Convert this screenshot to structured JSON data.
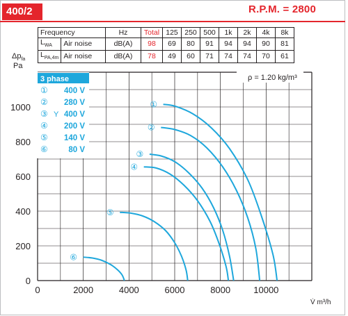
{
  "header": {
    "model": "400/2",
    "rpm_label": "R.P.M. = 2800"
  },
  "noise_table": {
    "headers": [
      "Frequency",
      "Hz",
      "Total",
      "125",
      "250",
      "500",
      "1k",
      "2k",
      "4k",
      "8k"
    ],
    "rows": [
      {
        "symbol": "L",
        "sub": "WA",
        "name": "Air noise",
        "unit": "dB(A)",
        "total": "98",
        "values": [
          "69",
          "80",
          "91",
          "94",
          "94",
          "90",
          "81"
        ]
      },
      {
        "symbol": "L",
        "sub": "PA,4m",
        "name": "Air noise",
        "unit": "dB(A)",
        "total": "78",
        "values": [
          "49",
          "60",
          "71",
          "74",
          "74",
          "70",
          "61"
        ]
      }
    ]
  },
  "legend": {
    "title": "3 phase",
    "items": [
      {
        "marker": "①",
        "y_mark": "",
        "voltage": "400 V"
      },
      {
        "marker": "②",
        "y_mark": "",
        "voltage": "280 V"
      },
      {
        "marker": "③",
        "y_mark": "Y",
        "voltage": "400 V"
      },
      {
        "marker": "④",
        "y_mark": "",
        "voltage": "200 V"
      },
      {
        "marker": "⑤",
        "y_mark": "",
        "voltage": "140 V"
      },
      {
        "marker": "⑥",
        "y_mark": "",
        "voltage": "80 V"
      }
    ]
  },
  "colors": {
    "accent_red": "#e4252c",
    "curve": "#1ea7dc",
    "legend_bg": "#1ea7dc",
    "grid": "#231f20"
  },
  "chart_data": {
    "type": "line",
    "title": "",
    "ylabel_line1": "Δp",
    "ylabel_sub": "fa",
    "ylabel_line2": "Pa",
    "xlabel": "V̇ m³/h",
    "density_note": "ρ = 1.20 kg/m³",
    "xlim": [
      0,
      12000
    ],
    "ylim": [
      0,
      1200
    ],
    "x_ticks": [
      0,
      2000,
      4000,
      6000,
      8000,
      10000
    ],
    "y_ticks": [
      0,
      200,
      400,
      600,
      800,
      1000
    ],
    "series": [
      {
        "marker": "①",
        "points": [
          [
            5500,
            1015
          ],
          [
            6000,
            1005
          ],
          [
            6800,
            960
          ],
          [
            7600,
            880
          ],
          [
            8400,
            760
          ],
          [
            9200,
            580
          ],
          [
            9800,
            370
          ],
          [
            10300,
            150
          ],
          [
            10480,
            0
          ]
        ]
      },
      {
        "marker": "②",
        "points": [
          [
            5400,
            882
          ],
          [
            6000,
            870
          ],
          [
            6700,
            835
          ],
          [
            7400,
            765
          ],
          [
            8100,
            655
          ],
          [
            8700,
            520
          ],
          [
            9200,
            360
          ],
          [
            9550,
            185
          ],
          [
            9720,
            0
          ]
        ]
      },
      {
        "marker": "③",
        "points": [
          [
            4900,
            728
          ],
          [
            5400,
            718
          ],
          [
            6000,
            685
          ],
          [
            6600,
            622
          ],
          [
            7200,
            532
          ],
          [
            7700,
            420
          ],
          [
            8100,
            290
          ],
          [
            8400,
            140
          ],
          [
            8580,
            0
          ]
        ]
      },
      {
        "marker": "④",
        "points": [
          [
            4650,
            655
          ],
          [
            5200,
            648
          ],
          [
            5800,
            613
          ],
          [
            6400,
            550
          ],
          [
            7000,
            460
          ],
          [
            7550,
            340
          ],
          [
            7950,
            210
          ],
          [
            8250,
            80
          ],
          [
            8350,
            0
          ]
        ]
      },
      {
        "marker": "⑤",
        "points": [
          [
            3600,
            393
          ],
          [
            4100,
            388
          ],
          [
            4600,
            372
          ],
          [
            5100,
            340
          ],
          [
            5600,
            288
          ],
          [
            6000,
            218
          ],
          [
            6300,
            140
          ],
          [
            6500,
            60
          ],
          [
            6570,
            0
          ]
        ]
      },
      {
        "marker": "⑥",
        "points": [
          [
            2000,
            135
          ],
          [
            2400,
            130
          ],
          [
            2800,
            117
          ],
          [
            3200,
            92
          ],
          [
            3500,
            62
          ],
          [
            3700,
            32
          ],
          [
            3800,
            0
          ]
        ]
      }
    ],
    "grid": true,
    "legend_position": "top-left"
  }
}
